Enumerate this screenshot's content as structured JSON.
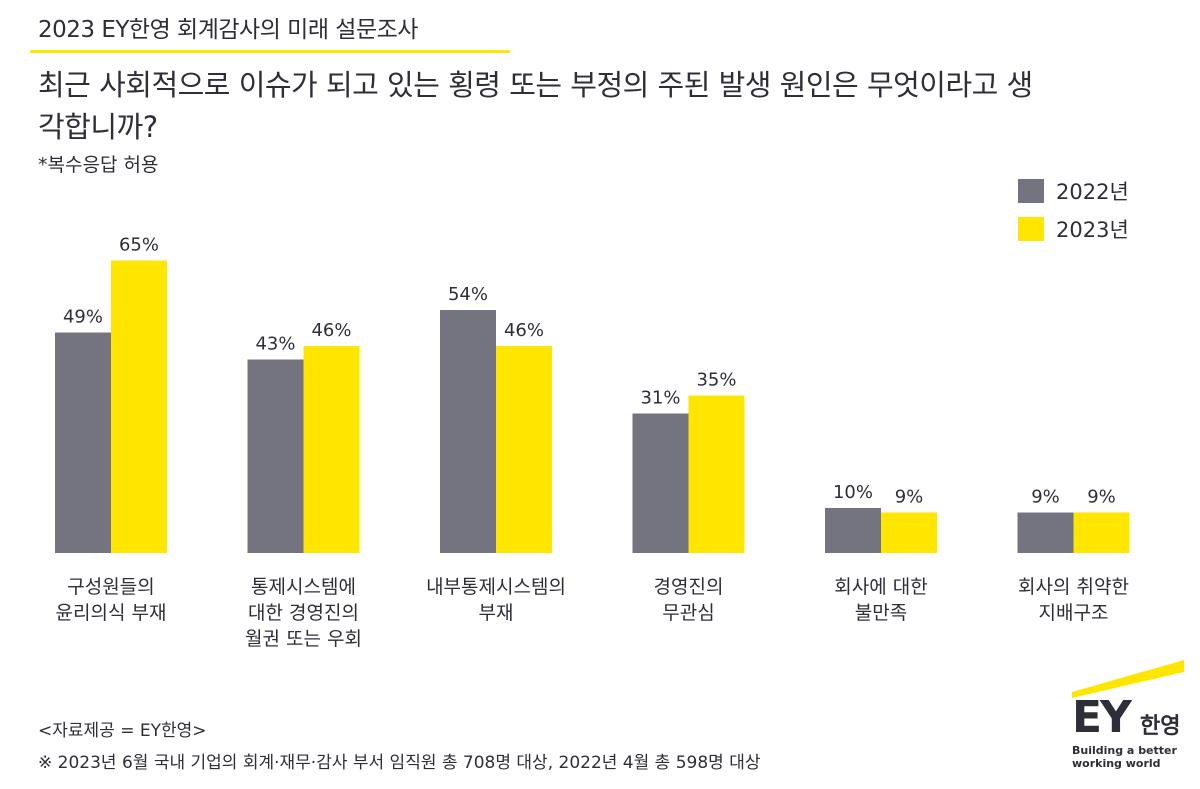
{
  "header": {
    "title": "2023 EY한영 회계감사의 미래 설문조사",
    "question": "최근 사회적으로 이슈가 되고 있는 횡령 또는 부정의 주된 발생 원인은 무엇이라고 생각합니까?",
    "note": "*복수응답 허용"
  },
  "colors": {
    "series_2022": "#747480",
    "series_2023": "#ffe600",
    "accent": "#ffe600",
    "text": "#2e2e38"
  },
  "chart_data": {
    "type": "bar",
    "categories": [
      [
        "구성원들의",
        "윤리의식 부재"
      ],
      [
        "통제시스템에",
        "대한 경영진의",
        "월권 또는 우회"
      ],
      [
        "내부통제시스템의",
        "부재"
      ],
      [
        "경영진의",
        "무관심"
      ],
      [
        "회사에 대한",
        "불만족"
      ],
      [
        "회사의 취약한",
        "지배구조"
      ]
    ],
    "series": [
      {
        "name": "2022년",
        "values": [
          49,
          43,
          54,
          31,
          10,
          9
        ]
      },
      {
        "name": "2023년",
        "values": [
          65,
          46,
          46,
          35,
          9,
          9
        ]
      }
    ],
    "value_suffix": "%",
    "legend_position": "top-right",
    "grid": false
  },
  "footer": {
    "source": "<자료제공 = EY한영>",
    "footnote": "※ 2023년 6월 국내 기업의 회계·재무·감사 부서 임직원 총 708명 대상, 2022년 4월 총 598명 대상"
  },
  "logo": {
    "main": "EY",
    "sub": "한영",
    "tagline_1": "Building a better",
    "tagline_2": "working world"
  }
}
